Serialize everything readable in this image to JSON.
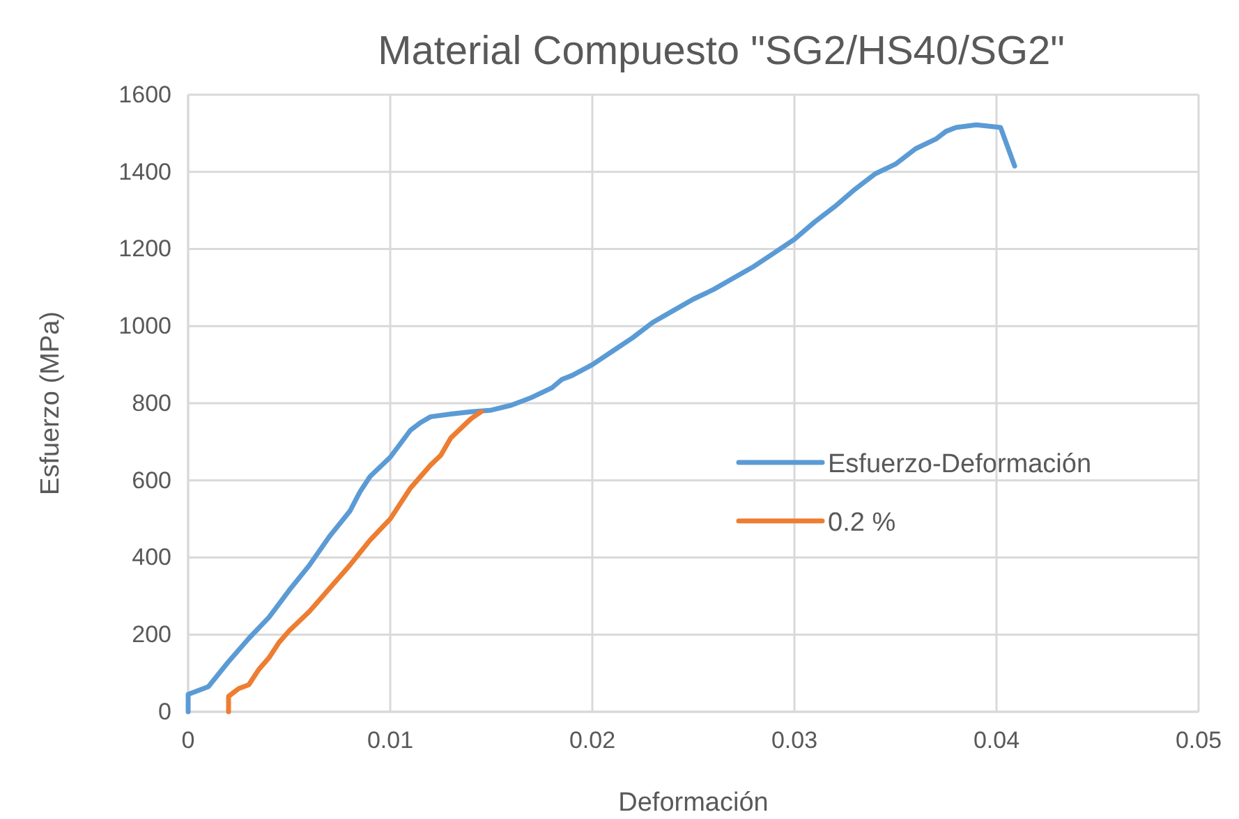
{
  "chart_data": {
    "type": "line",
    "title": "Material Compuesto \"SG2/HS40/SG2\"",
    "xlabel": "Deformación",
    "ylabel": "Esfuerzo (MPa)",
    "xlim": [
      0,
      0.05
    ],
    "xticks": [
      0,
      0.01,
      0.02,
      0.03,
      0.04,
      0.05
    ],
    "ylim": [
      0,
      1600
    ],
    "yticks": [
      0,
      200,
      400,
      600,
      800,
      1000,
      1200,
      1400,
      1600
    ],
    "grid": true,
    "legend": "right",
    "marker": "none",
    "line_style": "solid",
    "series": [
      {
        "name": "Esfuerzo-Deformación",
        "color": "#5b9bd5",
        "x": [
          0,
          0,
          0.001,
          0.002,
          0.003,
          0.004,
          0.005,
          0.006,
          0.007,
          0.008,
          0.0085,
          0.009,
          0.01,
          0.011,
          0.0115,
          0.012,
          0.013,
          0.014,
          0.015,
          0.016,
          0.017,
          0.018,
          0.0185,
          0.019,
          0.02,
          0.021,
          0.022,
          0.023,
          0.024,
          0.025,
          0.026,
          0.027,
          0.028,
          0.029,
          0.03,
          0.031,
          0.032,
          0.033,
          0.034,
          0.035,
          0.036,
          0.037,
          0.0375,
          0.038,
          0.039,
          0.0402,
          0.0409
        ],
        "values": [
          0,
          45,
          65,
          130,
          190,
          245,
          315,
          380,
          455,
          520,
          570,
          610,
          660,
          730,
          750,
          765,
          772,
          778,
          782,
          795,
          815,
          840,
          862,
          872,
          900,
          935,
          970,
          1010,
          1040,
          1070,
          1095,
          1125,
          1155,
          1190,
          1225,
          1270,
          1310,
          1355,
          1395,
          1420,
          1460,
          1485,
          1505,
          1515,
          1522,
          1515,
          1415
        ]
      },
      {
        "name": "0.2 %",
        "color": "#ed7d31",
        "x": [
          0.002,
          0.002,
          0.0025,
          0.003,
          0.0035,
          0.004,
          0.0045,
          0.005,
          0.006,
          0.007,
          0.008,
          0.009,
          0.01,
          0.011,
          0.012,
          0.0125,
          0.013,
          0.014,
          0.0145
        ],
        "values": [
          0,
          40,
          60,
          70,
          110,
          140,
          180,
          210,
          260,
          320,
          380,
          445,
          500,
          580,
          640,
          665,
          710,
          760,
          778
        ]
      }
    ]
  }
}
